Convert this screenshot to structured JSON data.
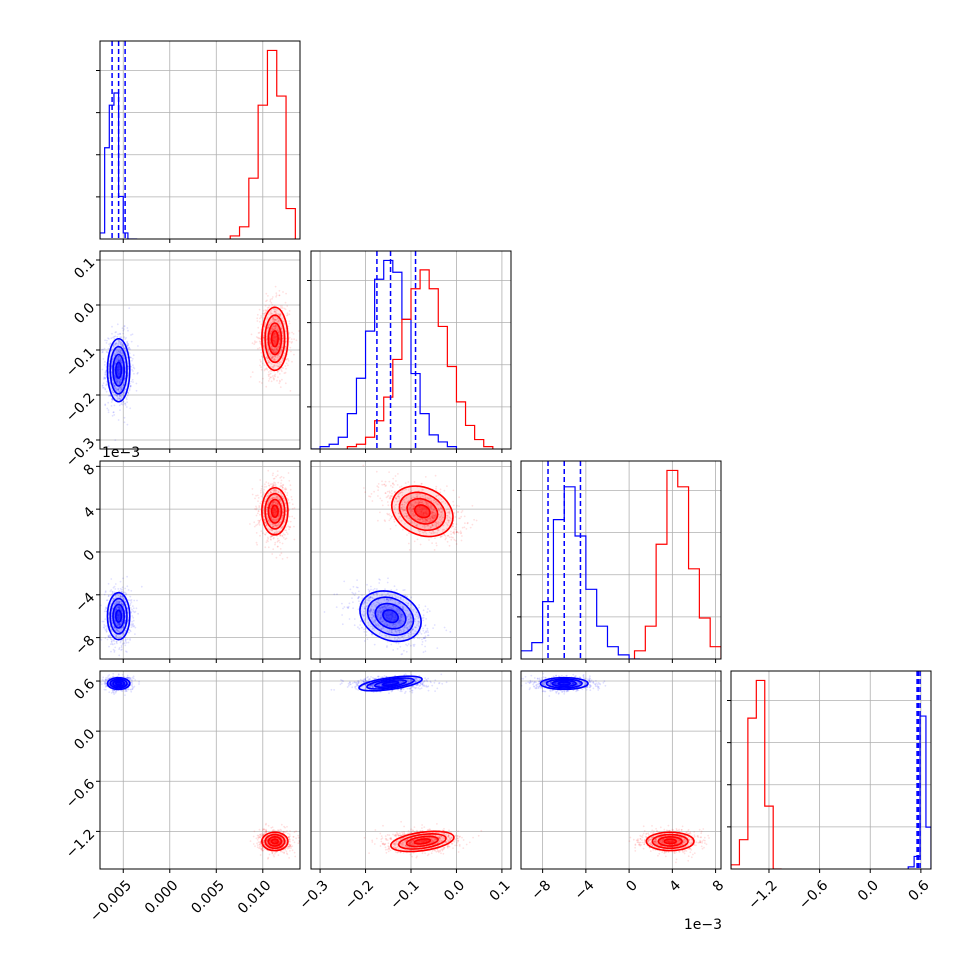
{
  "chart_data": {
    "type": "scatter",
    "title": "",
    "layout": "corner-plot",
    "n_params": 4,
    "colors": {
      "blue": "#0000ff",
      "red": "#ff0000"
    },
    "grid": true,
    "params": [
      {
        "lim": [
          -0.0075,
          0.014
        ],
        "ticks": [
          -0.005,
          0.0,
          0.005,
          0.01
        ],
        "tick_labels": [
          "−0.005",
          "0.000",
          "0.005",
          "0.010"
        ],
        "offset_label": ""
      },
      {
        "lim": [
          -0.32,
          0.12
        ],
        "ticks": [
          -0.3,
          -0.2,
          -0.1,
          0.0,
          0.1
        ],
        "tick_labels": [
          "−0.3",
          "−0.2",
          "−0.1",
          "0.0",
          "0.1"
        ],
        "offset_label": ""
      },
      {
        "lim": [
          -10,
          8.5
        ],
        "ticks": [
          -8,
          -4,
          0,
          4,
          8
        ],
        "tick_labels": [
          "−8",
          "−4",
          "0",
          "4",
          "8"
        ],
        "offset_label": "1e−3"
      },
      {
        "lim": [
          -1.65,
          0.72
        ],
        "ticks": [
          -1.2,
          -0.6,
          0.0,
          0.6
        ],
        "tick_labels": [
          "−1.2",
          "−0.6",
          "0.0",
          "0.6"
        ],
        "offset_label": ""
      }
    ],
    "series": [
      {
        "color": "#0000ff",
        "mean": [
          -0.0055,
          -0.145,
          -6.0,
          0.57
        ],
        "sigma": [
          0.0006,
          0.035,
          1.1,
          0.035
        ],
        "quantiles": [
          [
            -0.0062,
            -0.0055,
            -0.0048
          ],
          [
            -0.175,
            -0.145,
            -0.09
          ],
          [
            -7.5,
            -6.0,
            -4.5
          ],
          [
            0.555,
            0.57,
            0.59
          ]
        ]
      },
      {
        "color": "#ff0000",
        "mean": [
          0.0113,
          -0.075,
          3.8,
          -1.32
        ],
        "sigma": [
          0.0007,
          0.035,
          1.1,
          0.055
        ],
        "quantiles": []
      }
    ],
    "histograms": [
      {
        "param": 0,
        "blue": {
          "bins": [
            -0.0075,
            -0.007,
            -0.0065,
            -0.006,
            -0.0055,
            -0.005,
            -0.0045,
            -0.004,
            -0.0035
          ],
          "counts": [
            2,
            30,
            44,
            48,
            14,
            2,
            0,
            0
          ]
        },
        "red": {
          "bins": [
            0.0065,
            0.0075,
            0.0085,
            0.0095,
            0.0105,
            0.0115,
            0.0125,
            0.0135
          ],
          "counts": [
            1,
            4,
            20,
            44,
            62,
            47,
            10
          ]
        }
      },
      {
        "param": 1,
        "blue": {
          "bins": [
            -0.32,
            -0.3,
            -0.28,
            -0.26,
            -0.24,
            -0.22,
            -0.2,
            -0.18,
            -0.16,
            -0.14,
            -0.12,
            -0.1,
            -0.08,
            -0.06,
            -0.04,
            -0.02,
            0.0
          ],
          "counts": [
            0,
            1,
            2,
            5,
            15,
            30,
            50,
            72,
            80,
            75,
            55,
            32,
            15,
            6,
            3,
            1
          ]
        },
        "red": {
          "bins": [
            -0.24,
            -0.22,
            -0.2,
            -0.18,
            -0.16,
            -0.14,
            -0.12,
            -0.1,
            -0.08,
            -0.06,
            -0.04,
            -0.02,
            0.0,
            0.02,
            0.04,
            0.06,
            0.08
          ],
          "counts": [
            1,
            2,
            5,
            12,
            22,
            38,
            55,
            68,
            76,
            68,
            52,
            35,
            20,
            10,
            4,
            1
          ]
        }
      },
      {
        "param": 2,
        "blue": {
          "bins": [
            -10,
            -9,
            -8,
            -7,
            -6,
            -5,
            -4,
            -3,
            -2,
            -1,
            0,
            1
          ],
          "counts": [
            2,
            4,
            14,
            34,
            42,
            30,
            17,
            8,
            3,
            1,
            0
          ]
        },
        "red": {
          "bins": [
            0.5,
            1.5,
            2.5,
            3.5,
            4.5,
            5.5,
            6.5,
            7.5,
            8.5
          ],
          "counts": [
            2,
            8,
            28,
            46,
            42,
            22,
            10,
            3
          ]
        }
      },
      {
        "param": 3,
        "blue": {
          "bins": [
            0.45,
            0.52,
            0.59,
            0.66,
            0.72
          ],
          "counts": [
            1,
            6,
            73,
            20
          ]
        },
        "red": {
          "bins": [
            -1.65,
            -1.55,
            -1.45,
            -1.35,
            -1.25,
            -1.15,
            -1.05
          ],
          "counts": [
            2,
            14,
            72,
            90,
            30,
            0
          ]
        }
      }
    ]
  }
}
